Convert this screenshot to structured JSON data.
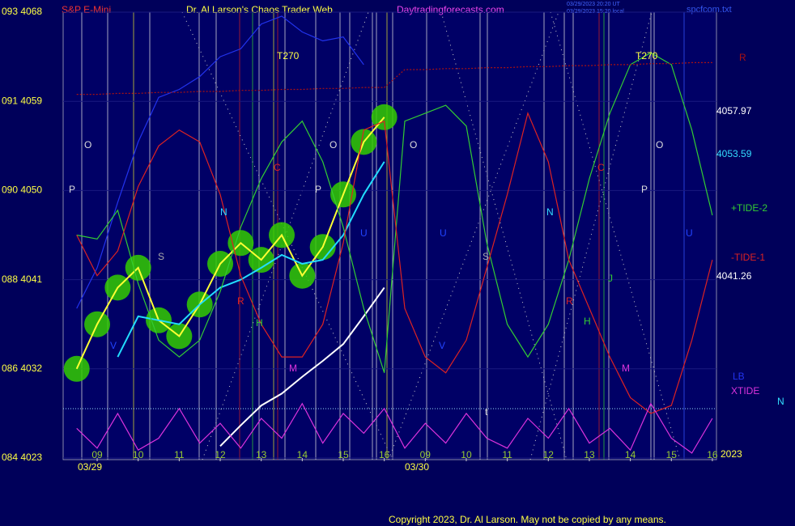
{
  "chart_data": {
    "type": "line",
    "title": "Dr. Al Larson's Chaos Trader Web",
    "instrument": "S&P E-Mini",
    "website": "Daytradingforecasts.com",
    "timestamps": [
      "03/29/2023 20:20 UT",
      "03/29/2023 15:20 local"
    ],
    "filename": "spcfcom.txt",
    "copyright": "Copyright 2023, Dr. Al Larson. May not be copied by any means.",
    "year": "2023",
    "dates": [
      "03/29",
      "03/30"
    ],
    "x": [
      -0.5,
      0,
      0.5,
      1,
      1.5,
      2,
      2.5,
      3,
      3.5,
      4,
      4.5,
      5,
      5.5,
      6,
      6.5,
      7,
      7.5,
      8,
      8.5,
      9,
      9.5,
      10,
      10.5,
      11,
      11.5,
      12,
      12.5,
      13,
      13.5,
      14,
      14.5,
      15
    ],
    "xlim": [
      -0.83,
      15.1
    ],
    "xticks": [
      {
        "value": 0,
        "label": "09"
      },
      {
        "value": 1,
        "label": "10"
      },
      {
        "value": 2,
        "label": "11"
      },
      {
        "value": 3,
        "label": "12"
      },
      {
        "value": 4,
        "label": "13"
      },
      {
        "value": 5,
        "label": "14"
      },
      {
        "value": 6,
        "label": "15"
      },
      {
        "value": 7,
        "label": "16"
      },
      {
        "value": 8,
        "label": "09"
      },
      {
        "value": 9,
        "label": "10"
      },
      {
        "value": 10,
        "label": "11"
      },
      {
        "value": 11,
        "label": "12"
      },
      {
        "value": 12,
        "label": "13"
      },
      {
        "value": 13,
        "label": "14"
      },
      {
        "value": 14,
        "label": "15"
      },
      {
        "value": 15,
        "label": "16"
      }
    ],
    "ylim": [
      4023,
      4068
    ],
    "yticks": [
      {
        "value": 4068,
        "label": "093  4068"
      },
      {
        "value": 4059,
        "label": "091  4059"
      },
      {
        "value": 4050,
        "label": "090  4050"
      },
      {
        "value": 4041,
        "label": "088  4041"
      },
      {
        "value": 4032,
        "label": "086  4032"
      },
      {
        "value": 4023,
        "label": "084  4023"
      }
    ],
    "grid": true,
    "series": [
      {
        "color": "#ffff33",
        "values": [
          4032.0,
          4036.5,
          4040.2,
          4042.2,
          4036.9,
          4035.3,
          4038.5,
          4042.6,
          4044.7,
          4043.0,
          4045.5,
          4041.4,
          4044.3,
          4049.6,
          4054.9,
          4057.4,
          null,
          null,
          null,
          null,
          null,
          null,
          null,
          null,
          null,
          null,
          null,
          null,
          null,
          null,
          null,
          null
        ]
      },
      {
        "color": "#22ddff",
        "values": [
          null,
          null,
          4033.2,
          4037.3,
          4036.9,
          4036.5,
          4038.5,
          4040.2,
          4041.0,
          4042.2,
          4043.5,
          4042.6,
          4043.0,
          4045.5,
          4049.6,
          4052.9,
          null,
          null,
          null,
          null,
          null,
          null,
          null,
          null,
          null,
          null,
          null,
          null,
          null,
          null,
          null,
          null
        ]
      },
      {
        "color": "#ffffff",
        "values": [
          null,
          null,
          null,
          null,
          null,
          null,
          null,
          4024.2,
          4026.3,
          4028.3,
          4029.5,
          4031.2,
          4032.8,
          4034.5,
          4037.3,
          4040.2,
          null,
          null,
          null,
          null,
          null,
          null,
          null,
          null,
          null,
          null,
          null,
          null,
          null,
          null,
          null,
          null
        ]
      },
      {
        "name": "LB",
        "color": "#2233ee",
        "values": [
          4038.1,
          4042.2,
          4048.8,
          4054.9,
          4059.4,
          4060.2,
          4061.5,
          4063.5,
          4064.3,
          4066.8,
          4067.6,
          4066.0,
          4065.1,
          4065.5,
          4062.7,
          null,
          null,
          null,
          null,
          null,
          null,
          null,
          null,
          null,
          null,
          null,
          null,
          null,
          null,
          null,
          null,
          null
        ]
      },
      {
        "name": "+TIDE-2",
        "color": "#33cc33",
        "values": [
          4045.5,
          4045.1,
          4048.0,
          4040.6,
          4034.9,
          4033.2,
          4034.9,
          4039.8,
          4046.3,
          4051.2,
          4054.9,
          4057.0,
          4052.9,
          4046.3,
          4038.1,
          4031.6,
          4057.0,
          4057.8,
          4058.6,
          4056.5,
          4044.7,
          4036.5,
          4033.2,
          4036.5,
          4043.0,
          4051.2,
          4057.8,
          4062.7,
          4063.9,
          4062.7,
          4056.1,
          4047.5
        ]
      },
      {
        "name": "-TIDE-1",
        "color": "#dd2222",
        "values": [
          4045.5,
          4041.4,
          4043.9,
          4050.4,
          4054.5,
          4056.1,
          4054.9,
          4049.6,
          4041.4,
          4036.5,
          4033.2,
          4033.2,
          4036.5,
          4044.7,
          4056.1,
          4057.0,
          4038.1,
          4033.2,
          4031.6,
          4034.9,
          4042.2,
          4049.6,
          4057.8,
          4052.9,
          4043.0,
          4038.1,
          4033.2,
          4029.1,
          4027.5,
          4028.3,
          4034.9,
          4043.0
        ]
      },
      {
        "name": "XTIDE",
        "color": "#dd33dd",
        "values": [
          4026,
          4024,
          4027.5,
          4023.8,
          4025,
          4028,
          4024.5,
          4026.5,
          4024,
          4027,
          4025,
          4028.5,
          4024.5,
          4027.5,
          4025.5,
          4028,
          4024,
          4026.5,
          4024.5,
          4027.5,
          4025,
          4024,
          4027,
          4025,
          4028,
          4024.5,
          4026,
          4023.8,
          4028.5,
          4025,
          4023.5,
          4027
        ]
      },
      {
        "name": "R",
        "color": "#aa1111",
        "dashed": true,
        "values": [
          4059.7,
          4059.7,
          4059.8,
          4059.8,
          4059.9,
          4059.9,
          4060.0,
          4060.0,
          4060.1,
          4060.1,
          4060.2,
          4060.2,
          4060.3,
          4060.3,
          4060.4,
          4060.4,
          4062.2,
          4062.2,
          4062.3,
          4062.3,
          4062.4,
          4062.4,
          4062.5,
          4062.5,
          4062.6,
          4062.6,
          4062.7,
          4062.7,
          4062.8,
          4062.8,
          4062.9,
          4062.9
        ]
      }
    ],
    "price_labels": [
      "4057.97",
      "4053.59",
      "4041.26"
    ],
    "right_note": "N",
    "annotations": [
      "O",
      "P",
      "S",
      "N",
      "R",
      "H",
      "M",
      "C",
      "P",
      "O",
      "T270",
      "U",
      "V",
      "O",
      "U",
      "V",
      "S",
      "N",
      "R",
      "H",
      "C",
      "J",
      "M",
      "P",
      "O",
      "T270",
      "U",
      "t"
    ]
  }
}
